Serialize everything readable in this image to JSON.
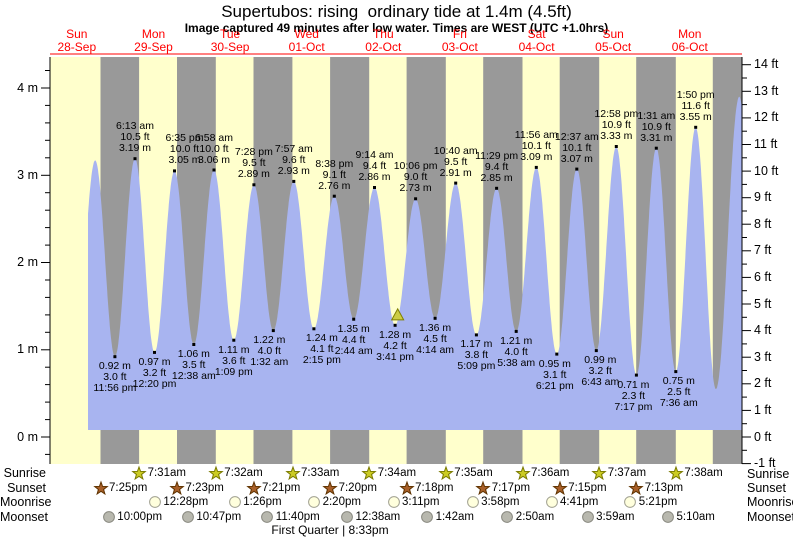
{
  "title": "Supertubos: rising  ordinary tide at 1.4m (4.5ft)",
  "subtitle": "Image captured 49 minutes after low water. Times are WEST (UTC +1.0hrs)",
  "colors": {
    "day_band": "#ffffcc",
    "night_band": "#999999",
    "tide_fill": "#a8b4f0",
    "date_red": "#ff0000",
    "sunrise_star_fill": "#cbcb23",
    "sunrise_star_stroke": "#7a7a00",
    "sunset_star_fill": "#a85f28",
    "sunset_star_stroke": "#5f3300",
    "moonrise_fill": "#ffffdd",
    "moonrise_stroke": "#a0a090",
    "moonset_fill": "#b8b8ae",
    "moonset_stroke": "#88887f",
    "marker_fill": "#cccc44",
    "marker_stroke": "#808000"
  },
  "chart_data": {
    "type": "area",
    "title": "Supertubos: rising  ordinary tide at 1.4m (4.5ft)",
    "subtitle": "Image captured 49 minutes after low water. Times are WEST (UTC +1.0hrs)",
    "y_axis_left": {
      "unit": "m",
      "tick_labels": [
        "0 m",
        "1 m",
        "2 m",
        "3 m",
        "4 m"
      ],
      "tick_values": [
        0,
        1,
        2,
        3,
        4
      ],
      "minor_step": 0.2
    },
    "y_axis_right": {
      "unit": "ft",
      "min": -1,
      "max": 14,
      "minor_step": 0.5,
      "tick_labels": [
        "-1 ft",
        "0 ft",
        "1 ft",
        "2 ft",
        "3 ft",
        "4 ft",
        "5 ft",
        "6 ft",
        "7 ft",
        "8 ft",
        "9 ft",
        "10 ft",
        "11 ft",
        "12 ft",
        "13 ft",
        "14 ft"
      ]
    },
    "days": [
      {
        "weekday": "Sun",
        "date": "28-Sep"
      },
      {
        "weekday": "Mon",
        "date": "29-Sep"
      },
      {
        "weekday": "Tue",
        "date": "30-Sep"
      },
      {
        "weekday": "Wed",
        "date": "01-Oct"
      },
      {
        "weekday": "Thu",
        "date": "02-Oct"
      },
      {
        "weekday": "Fri",
        "date": "03-Oct"
      },
      {
        "weekday": "Sat",
        "date": "04-Oct"
      },
      {
        "weekday": "Sun",
        "date": "05-Oct"
      },
      {
        "weekday": "Mon",
        "date": "06-Oct"
      }
    ],
    "tide_events": [
      {
        "type": "low",
        "day": 0,
        "time": "11:56 pm",
        "ft": "3.0 ft",
        "m": "0.92 m"
      },
      {
        "type": "high",
        "day": 1,
        "time": "6:13 am",
        "ft": "10.5 ft",
        "m": "3.19 m"
      },
      {
        "type": "low",
        "day": 1,
        "time": "12:20 pm",
        "ft": "3.2 ft",
        "m": "0.97 m"
      },
      {
        "type": "high",
        "day": 1,
        "time": "6:35 pm",
        "ft": "10.0 ft",
        "m": "3.05 m",
        "label_dx": 10
      },
      {
        "type": "low",
        "day": 2,
        "time": "12:38 am",
        "ft": "3.5 ft",
        "m": "1.06 m"
      },
      {
        "type": "high",
        "day": 2,
        "time": "6:58 am",
        "ft": "10.0 ft",
        "m": "3.06 m"
      },
      {
        "type": "low",
        "day": 2,
        "time": "1:09 pm",
        "ft": "3.6 ft",
        "m": "1.11 m"
      },
      {
        "type": "high",
        "day": 2,
        "time": "7:28 pm",
        "ft": "9.5 ft",
        "m": "2.89 m"
      },
      {
        "type": "low",
        "day": 3,
        "time": "1:32 am",
        "ft": "4.0 ft",
        "m": "1.22 m",
        "label_dx": -4
      },
      {
        "type": "high",
        "day": 3,
        "time": "7:57 am",
        "ft": "9.6 ft",
        "m": "2.93 m"
      },
      {
        "type": "low",
        "day": 3,
        "time": "2:15 pm",
        "ft": "4.1 ft",
        "m": "1.24 m",
        "label_dx": 8
      },
      {
        "type": "high",
        "day": 3,
        "time": "8:38 pm",
        "ft": "9.1 ft",
        "m": "2.76 m"
      },
      {
        "type": "low",
        "day": 4,
        "time": "2:44 am",
        "ft": "4.4 ft",
        "m": "1.35 m"
      },
      {
        "type": "high",
        "day": 4,
        "time": "9:14 am",
        "ft": "9.4 ft",
        "m": "2.86 m"
      },
      {
        "type": "low",
        "day": 4,
        "time": "3:41 pm",
        "ft": "4.2 ft",
        "m": "1.28 m",
        "current_low": true
      },
      {
        "type": "high",
        "day": 4,
        "time": "10:06 pm",
        "ft": "9.0 ft",
        "m": "2.73 m"
      },
      {
        "type": "low",
        "day": 5,
        "time": "4:14 am",
        "ft": "4.5 ft",
        "m": "1.36 m"
      },
      {
        "type": "high",
        "day": 5,
        "time": "10:40 am",
        "ft": "9.5 ft",
        "m": "2.91 m"
      },
      {
        "type": "low",
        "day": 5,
        "time": "5:09 pm",
        "ft": "3.8 ft",
        "m": "1.17 m"
      },
      {
        "type": "high",
        "day": 5,
        "time": "11:29 pm",
        "ft": "9.4 ft",
        "m": "2.85 m"
      },
      {
        "type": "low",
        "day": 6,
        "time": "5:38 am",
        "ft": "4.0 ft",
        "m": "1.21 m"
      },
      {
        "type": "high",
        "day": 6,
        "time": "11:56 am",
        "ft": "10.1 ft",
        "m": "3.09 m"
      },
      {
        "type": "low",
        "day": 6,
        "time": "6:21 pm",
        "ft": "3.1 ft",
        "m": "0.95 m",
        "label_dx": -2
      },
      {
        "type": "high",
        "day": 7,
        "time": "12:37 am",
        "ft": "10.1 ft",
        "m": "3.07 m"
      },
      {
        "type": "low",
        "day": 7,
        "time": "6:43 am",
        "ft": "3.2 ft",
        "m": "0.99 m",
        "label_dx": 4
      },
      {
        "type": "high",
        "day": 7,
        "time": "12:58 pm",
        "ft": "10.9 ft",
        "m": "3.33 m"
      },
      {
        "type": "low",
        "day": 7,
        "time": "7:17 pm",
        "ft": "2.3 ft",
        "m": "0.71 m",
        "label_dx": -3
      },
      {
        "type": "high",
        "day": 8,
        "time": "1:31 am",
        "ft": "10.9 ft",
        "m": "3.31 m"
      },
      {
        "type": "low",
        "day": 8,
        "time": "7:36 am",
        "ft": "2.5 ft",
        "m": "0.75 m",
        "label_dx": 3
      },
      {
        "type": "high",
        "day": 8,
        "time": "1:50 pm",
        "ft": "11.6 ft",
        "m": "3.55 m"
      }
    ],
    "curve_shape_points": [
      {
        "day": 0,
        "time": "11:30 am",
        "h": 1.05
      },
      {
        "day": 0,
        "time": "5:45 pm",
        "h": 3.17
      },
      {
        "day": 8,
        "time": "8:10 pm",
        "h": 0.55
      },
      {
        "day": 9,
        "time": "3:30 am",
        "h": 3.9
      },
      {
        "day": 9,
        "time": "9:45 am",
        "h": 0.8
      }
    ],
    "current_height_m": 1.4,
    "captured_minutes_after_low": 49,
    "astro": {
      "rows": [
        {
          "label": "Sunrise",
          "icon": "sunrise-star",
          "events": [
            {
              "day": 1,
              "time": "7:31am"
            },
            {
              "day": 2,
              "time": "7:32am"
            },
            {
              "day": 3,
              "time": "7:33am"
            },
            {
              "day": 4,
              "time": "7:34am"
            },
            {
              "day": 5,
              "time": "7:35am"
            },
            {
              "day": 6,
              "time": "7:36am"
            },
            {
              "day": 7,
              "time": "7:37am"
            },
            {
              "day": 8,
              "time": "7:38am"
            }
          ]
        },
        {
          "label": "Sunset",
          "icon": "sunset-star",
          "events": [
            {
              "day": 0,
              "time": "7:25pm"
            },
            {
              "day": 1,
              "time": "7:23pm"
            },
            {
              "day": 2,
              "time": "7:21pm"
            },
            {
              "day": 3,
              "time": "7:20pm"
            },
            {
              "day": 4,
              "time": "7:18pm"
            },
            {
              "day": 5,
              "time": "7:17pm"
            },
            {
              "day": 6,
              "time": "7:15pm"
            },
            {
              "day": 7,
              "time": "7:13pm"
            }
          ]
        },
        {
          "label": "Moonrise",
          "icon": "moonrise-circle",
          "events": [
            {
              "day": 1,
              "time": "12:28pm"
            },
            {
              "day": 2,
              "time": "1:26pm"
            },
            {
              "day": 3,
              "time": "2:20pm"
            },
            {
              "day": 4,
              "time": "3:11pm"
            },
            {
              "day": 5,
              "time": "3:58pm"
            },
            {
              "day": 6,
              "time": "4:41pm"
            },
            {
              "day": 7,
              "time": "5:21pm"
            }
          ]
        },
        {
          "label": "Moonset",
          "icon": "moonset-circle",
          "events": [
            {
              "day": 0,
              "time": "10:00pm"
            },
            {
              "day": 1,
              "time": "10:47pm"
            },
            {
              "day": 2,
              "time": "11:40pm"
            },
            {
              "day": 4,
              "time": "12:38am"
            },
            {
              "day": 5,
              "time": "1:42am"
            },
            {
              "day": 6,
              "time": "2:50am"
            },
            {
              "day": 7,
              "time": "3:59am"
            },
            {
              "day": 8,
              "time": "5:10am"
            }
          ]
        }
      ]
    },
    "moon_phase": "First Quarter | 8:33pm"
  }
}
